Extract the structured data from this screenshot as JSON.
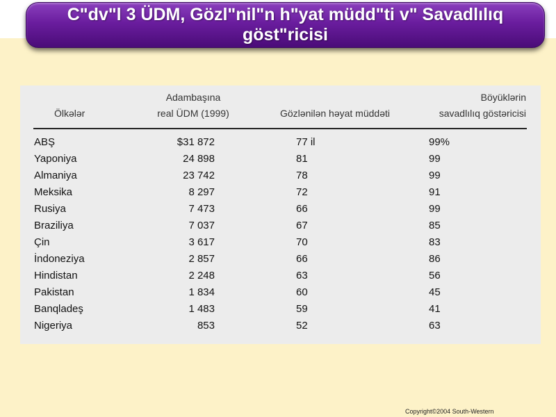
{
  "title": "Cʺdvʺl 3 ÜDM, Gözlʺnilʺn hʺyat müddʺti vʺ  Savadlılıq göstʺricisi",
  "table": {
    "headers": {
      "country": "Ölkələr",
      "gdp_line1": "Adambaşına",
      "gdp_line2": "real ÜDM (1999)",
      "life": "Gözlənilən həyat müddəti",
      "literacy_line1": "Böyüklərin",
      "literacy_line2": "savadlılıq göstəricisi"
    },
    "rows": [
      {
        "country": "ABŞ",
        "gdp": "$31 872",
        "life": "77 il",
        "literacy": "99%"
      },
      {
        "country": "Yaponiya",
        "gdp": "24 898",
        "life": "81",
        "literacy": "99"
      },
      {
        "country": "Almaniya",
        "gdp": "23 742",
        "life": "78",
        "literacy": "99"
      },
      {
        "country": "Meksika",
        "gdp": "8 297",
        "life": "72",
        "literacy": "91"
      },
      {
        "country": "Rusiya",
        "gdp": "7 473",
        "life": "66",
        "literacy": "99"
      },
      {
        "country": "Braziliya",
        "gdp": "7 037",
        "life": "67",
        "literacy": "85"
      },
      {
        "country": "Çin",
        "gdp": "3 617",
        "life": "70",
        "literacy": "83"
      },
      {
        "country": "İndoneziya",
        "gdp": "2 857",
        "life": "66",
        "literacy": "86"
      },
      {
        "country": "Hindistan",
        "gdp": "2 248",
        "life": "63",
        "literacy": "56"
      },
      {
        "country": "Pakistan",
        "gdp": "1 834",
        "life": "60",
        "literacy": "45"
      },
      {
        "country": "Banqladeş",
        "gdp": "1 483",
        "life": "59",
        "literacy": "41"
      },
      {
        "country": "Nigeriya",
        "gdp": "853",
        "life": "52",
        "literacy": "63"
      }
    ]
  },
  "footer": {
    "copyright": "Copyright©2004  South-Western"
  },
  "colors": {
    "background": "#fdf2c8",
    "banner": "#6a1d9e",
    "table_bg": "#ececec"
  }
}
